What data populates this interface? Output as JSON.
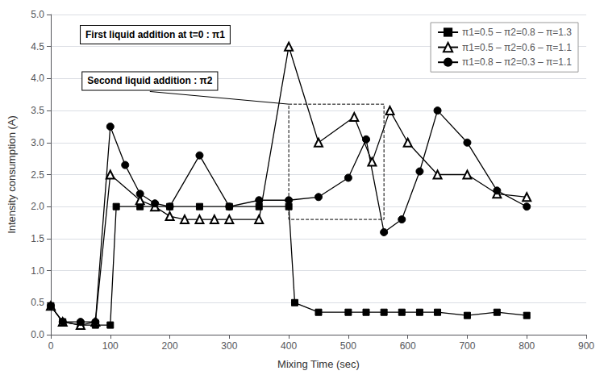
{
  "chart_data": {
    "type": "line",
    "x_label": "Mixing Time (sec)",
    "y_label": "Intensity consumption (A)",
    "series": [
      {
        "name": "π1=0.5 – π2=0.8 – π=1.3",
        "color": "#000000",
        "marker": "square",
        "line_style": "solid",
        "x": [
          0,
          20,
          50,
          75,
          100,
          110,
          150,
          200,
          250,
          300,
          350,
          400,
          410,
          450,
          500,
          530,
          560,
          590,
          620,
          650,
          700,
          750,
          800
        ],
        "values": [
          0.45,
          0.2,
          0.15,
          0.15,
          0.15,
          2.0,
          2.0,
          2.0,
          2.0,
          2.0,
          2.0,
          2.0,
          0.5,
          0.35,
          0.35,
          0.35,
          0.35,
          0.35,
          0.35,
          0.35,
          0.3,
          0.35,
          0.3
        ]
      },
      {
        "name": "π1=0.5 – π2=0.6 – π=1.1",
        "color": "#000000",
        "marker": "triangle-open",
        "line_style": "solid",
        "x": [
          0,
          20,
          50,
          75,
          100,
          150,
          175,
          200,
          225,
          250,
          275,
          300,
          350,
          400,
          450,
          510,
          540,
          570,
          600,
          650,
          700,
          750,
          800
        ],
        "values": [
          0.45,
          0.2,
          0.15,
          0.2,
          2.5,
          2.1,
          2.0,
          1.85,
          1.8,
          1.8,
          1.8,
          1.8,
          1.8,
          4.5,
          3.0,
          3.4,
          2.7,
          3.5,
          3.0,
          2.5,
          2.5,
          2.2,
          2.15
        ]
      },
      {
        "name": "π1=0.8 – π2=0.3 – π=1.1",
        "color": "#000000",
        "marker": "circle",
        "line_style": "solid",
        "x": [
          0,
          20,
          50,
          75,
          100,
          125,
          150,
          175,
          200,
          250,
          300,
          350,
          400,
          450,
          500,
          530,
          560,
          590,
          620,
          650,
          700,
          750,
          800
        ],
        "values": [
          0.45,
          0.2,
          0.2,
          0.2,
          3.25,
          2.65,
          2.2,
          2.05,
          2.0,
          2.8,
          2.0,
          2.1,
          2.1,
          2.15,
          2.45,
          3.05,
          1.6,
          1.8,
          2.55,
          3.5,
          3.0,
          2.25,
          2.0
        ]
      }
    ],
    "annotations": [
      {
        "text": "First liquid addition at t=0 : π1"
      },
      {
        "text": "Second liquid addition : π2",
        "region": {
          "x": [
            400,
            560
          ],
          "y": [
            1.8,
            3.6
          ]
        }
      }
    ],
    "xlim": [
      0,
      900
    ],
    "xticks": [
      0,
      100,
      200,
      300,
      400,
      500,
      600,
      700,
      800,
      900
    ],
    "ylim": [
      0,
      5
    ],
    "yticks": [
      {
        "value": 0,
        "label": "0.0"
      },
      0.5,
      {
        "value": 1.0,
        "label": "1.0"
      },
      1.5,
      {
        "value": 2.0,
        "label": "2.0"
      },
      2.5,
      {
        "value": 3.0,
        "label": "3.0"
      },
      3.5,
      {
        "value": 4.0,
        "label": "4.0"
      },
      4.5,
      {
        "value": 5.0,
        "label": "5.0"
      }
    ],
    "grid": true,
    "legend": "top-right"
  }
}
